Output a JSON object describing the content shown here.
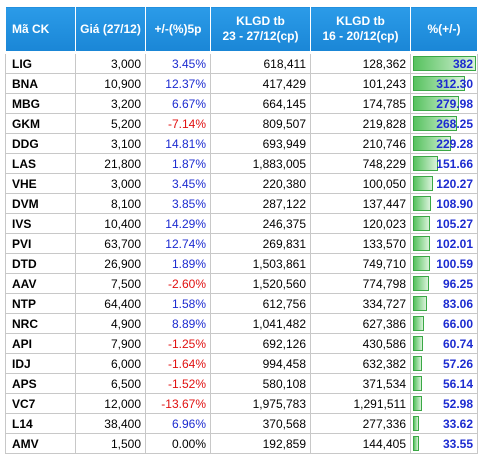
{
  "table": {
    "header": [
      "Mã CK",
      "Giá (27/12)",
      "+/-(%)5p",
      "KLGD tb\n23 - 27/12(cp)",
      "KLGD tb\n16 - 20/12(cp)",
      "%(+/-)"
    ],
    "rows": [
      [
        "LIG",
        "3,000",
        "3.45%",
        "618,411",
        "128,362",
        "382"
      ],
      [
        "BNA",
        "10,900",
        "12.37%",
        "417,429",
        "101,243",
        "312.30"
      ],
      [
        "MBG",
        "3,200",
        "6.67%",
        "664,145",
        "174,785",
        "279.98"
      ],
      [
        "GKM",
        "5,200",
        "-7.14%",
        "809,507",
        "219,828",
        "268.25"
      ],
      [
        "DDG",
        "3,100",
        "14.81%",
        "693,949",
        "210,746",
        "229.28"
      ],
      [
        "LAS",
        "21,800",
        "1.87%",
        "1,883,005",
        "748,229",
        "151.66"
      ],
      [
        "VHE",
        "3,000",
        "3.45%",
        "220,380",
        "100,050",
        "120.27"
      ],
      [
        "DVM",
        "8,100",
        "3.85%",
        "287,122",
        "137,447",
        "108.90"
      ],
      [
        "IVS",
        "10,400",
        "14.29%",
        "246,375",
        "120,023",
        "105.27"
      ],
      [
        "PVI",
        "63,700",
        "12.74%",
        "269,831",
        "133,570",
        "102.01"
      ],
      [
        "DTD",
        "26,900",
        "1.89%",
        "1,503,861",
        "749,710",
        "100.59"
      ],
      [
        "AAV",
        "7,500",
        "-2.60%",
        "1,520,560",
        "774,798",
        "96.25"
      ],
      [
        "NTP",
        "64,400",
        "1.58%",
        "612,756",
        "334,727",
        "83.06"
      ],
      [
        "NRC",
        "4,900",
        "8.89%",
        "1,041,482",
        "627,386",
        "66.00"
      ],
      [
        "API",
        "7,900",
        "-1.25%",
        "692,126",
        "430,586",
        "60.74"
      ],
      [
        "IDJ",
        "6,000",
        "-1.64%",
        "994,458",
        "632,382",
        "57.26"
      ],
      [
        "APS",
        "6,500",
        "-1.52%",
        "580,108",
        "371,534",
        "56.14"
      ],
      [
        "VC7",
        "12,000",
        "-13.67%",
        "1,975,783",
        "1,291,511",
        "52.98"
      ],
      [
        "L14",
        "38,400",
        "6.96%",
        "370,568",
        "277,336",
        "33.62"
      ],
      [
        "AMV",
        "1,500",
        "0.00%",
        "192,859",
        "144,405",
        "33.55"
      ]
    ]
  }
}
